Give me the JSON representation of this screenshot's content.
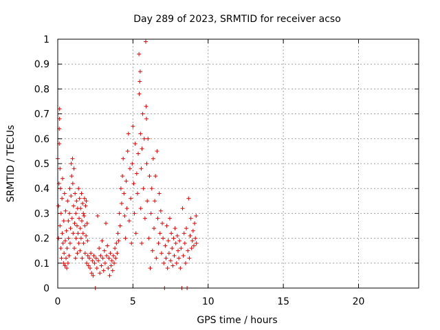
{
  "chart_data": {
    "type": "scatter",
    "title": "Day 289 of 2023, SRMTID for receiver acso",
    "xlabel": "GPS time / hours",
    "ylabel": "SRMTID / TECUs",
    "xlim": [
      0,
      24
    ],
    "ylim": [
      0,
      1
    ],
    "xticks": [
      0,
      5,
      10,
      15,
      20
    ],
    "yticks": [
      0,
      0.1,
      0.2,
      0.3,
      0.4,
      0.5,
      0.6,
      0.7,
      0.8,
      0.9,
      1
    ],
    "xtick_labels": [
      "0",
      "5",
      "10",
      "15",
      "20"
    ],
    "ytick_labels": [
      "0",
      "0.1",
      "0.2",
      "0.3",
      "0.4",
      "0.5",
      "0.6",
      "0.7",
      "0.8",
      "0.9",
      "1"
    ],
    "grid": true,
    "legend": "none",
    "marker": "+",
    "color": "#e00000",
    "points": [
      [
        0.0,
        0.52
      ],
      [
        0.05,
        0.2
      ],
      [
        0.05,
        0.33
      ],
      [
        0.08,
        0.42
      ],
      [
        0.1,
        0.58
      ],
      [
        0.1,
        0.64
      ],
      [
        0.12,
        0.68
      ],
      [
        0.12,
        0.72
      ],
      [
        0.15,
        0.48
      ],
      [
        0.15,
        0.25
      ],
      [
        0.18,
        0.4
      ],
      [
        0.2,
        0.16
      ],
      [
        0.22,
        0.3
      ],
      [
        0.25,
        0.12
      ],
      [
        0.28,
        0.36
      ],
      [
        0.3,
        0.22
      ],
      [
        0.32,
        0.44
      ],
      [
        0.35,
        0.18
      ],
      [
        0.38,
        0.1
      ],
      [
        0.4,
        0.27
      ],
      [
        0.42,
        0.14
      ],
      [
        0.45,
        0.38
      ],
      [
        0.48,
        0.09
      ],
      [
        0.5,
        0.19
      ],
      [
        0.52,
        0.31
      ],
      [
        0.55,
        0.12
      ],
      [
        0.58,
        0.23
      ],
      [
        0.6,
        0.08
      ],
      [
        0.62,
        0.16
      ],
      [
        0.65,
        0.35
      ],
      [
        0.68,
        0.1
      ],
      [
        0.7,
        0.27
      ],
      [
        0.72,
        0.2
      ],
      [
        0.75,
        0.13
      ],
      [
        0.78,
        0.3
      ],
      [
        0.8,
        0.4
      ],
      [
        0.82,
        0.18
      ],
      [
        0.85,
        0.24
      ],
      [
        0.88,
        0.37
      ],
      [
        0.9,
        0.5
      ],
      [
        0.92,
        0.45
      ],
      [
        0.95,
        0.28
      ],
      [
        0.98,
        0.52
      ],
      [
        1.0,
        0.42
      ],
      [
        1.02,
        0.22
      ],
      [
        1.05,
        0.33
      ],
      [
        1.08,
        0.48
      ],
      [
        1.1,
        0.16
      ],
      [
        1.12,
        0.26
      ],
      [
        1.15,
        0.38
      ],
      [
        1.18,
        0.12
      ],
      [
        1.2,
        0.3
      ],
      [
        1.22,
        0.2
      ],
      [
        1.25,
        0.35
      ],
      [
        1.28,
        0.25
      ],
      [
        1.3,
        0.14
      ],
      [
        1.32,
        0.32
      ],
      [
        1.35,
        0.22
      ],
      [
        1.38,
        0.4
      ],
      [
        1.4,
        0.18
      ],
      [
        1.42,
        0.28
      ],
      [
        1.45,
        0.36
      ],
      [
        1.48,
        0.15
      ],
      [
        1.5,
        0.24
      ],
      [
        1.52,
        0.32
      ],
      [
        1.55,
        0.2
      ],
      [
        1.58,
        0.38
      ],
      [
        1.6,
        0.27
      ],
      [
        1.62,
        0.12
      ],
      [
        1.65,
        0.34
      ],
      [
        1.68,
        0.22
      ],
      [
        1.7,
        0.3
      ],
      [
        1.72,
        0.18
      ],
      [
        1.75,
        0.29
      ],
      [
        1.78,
        0.36
      ],
      [
        1.8,
        0.25
      ],
      [
        1.82,
        0.14
      ],
      [
        1.85,
        0.33
      ],
      [
        1.88,
        0.21
      ],
      [
        1.9,
        0.35
      ],
      [
        1.92,
        0.1
      ],
      [
        1.95,
        0.26
      ],
      [
        1.98,
        0.19
      ],
      [
        2.0,
        0.13
      ],
      [
        2.05,
        0.09
      ],
      [
        2.1,
        0.12
      ],
      [
        2.15,
        0.08
      ],
      [
        2.2,
        0.14
      ],
      [
        2.25,
        0.06
      ],
      [
        2.3,
        0.11
      ],
      [
        2.35,
        0.05
      ],
      [
        2.4,
        0.13
      ],
      [
        2.45,
        0.1
      ],
      [
        2.5,
        0.0
      ],
      [
        2.55,
        0.12
      ],
      [
        2.6,
        0.08
      ],
      [
        2.65,
        0.29
      ],
      [
        2.7,
        0.11
      ],
      [
        2.75,
        0.16
      ],
      [
        2.8,
        0.06
      ],
      [
        2.85,
        0.13
      ],
      [
        2.9,
        0.09
      ],
      [
        2.95,
        0.19
      ],
      [
        3.0,
        0.12
      ],
      [
        3.05,
        0.07
      ],
      [
        3.1,
        0.15
      ],
      [
        3.15,
        0.1
      ],
      [
        3.2,
        0.26
      ],
      [
        3.25,
        0.13
      ],
      [
        3.3,
        0.17
      ],
      [
        3.35,
        0.08
      ],
      [
        3.4,
        0.12
      ],
      [
        3.45,
        0.05
      ],
      [
        3.5,
        0.14
      ],
      [
        3.55,
        0.09
      ],
      [
        3.6,
        0.11
      ],
      [
        3.65,
        0.07
      ],
      [
        3.7,
        0.13
      ],
      [
        3.75,
        0.1
      ],
      [
        3.8,
        0.16
      ],
      [
        3.85,
        0.12
      ],
      [
        3.9,
        0.18
      ],
      [
        3.95,
        0.14
      ],
      [
        4.0,
        0.22
      ],
      [
        4.05,
        0.19
      ],
      [
        4.1,
        0.3
      ],
      [
        4.15,
        0.25
      ],
      [
        4.2,
        0.4
      ],
      [
        4.25,
        0.34
      ],
      [
        4.3,
        0.45
      ],
      [
        4.35,
        0.52
      ],
      [
        4.4,
        0.38
      ],
      [
        4.45,
        0.29
      ],
      [
        4.5,
        0.2
      ],
      [
        4.55,
        0.43
      ],
      [
        4.6,
        0.32
      ],
      [
        4.65,
        0.55
      ],
      [
        4.7,
        0.62
      ],
      [
        4.75,
        0.27
      ],
      [
        4.8,
        0.48
      ],
      [
        4.85,
        0.36
      ],
      [
        4.9,
        0.18
      ],
      [
        4.95,
        0.5
      ],
      [
        5.0,
        0.65
      ],
      [
        5.05,
        0.42
      ],
      [
        5.1,
        0.3
      ],
      [
        5.15,
        0.58
      ],
      [
        5.2,
        0.22
      ],
      [
        5.25,
        0.46
      ],
      [
        5.3,
        0.38
      ],
      [
        5.35,
        0.54
      ],
      [
        5.4,
        0.94
      ],
      [
        5.42,
        0.78
      ],
      [
        5.45,
        0.83
      ],
      [
        5.48,
        0.87
      ],
      [
        5.5,
        0.62
      ],
      [
        5.52,
        0.32
      ],
      [
        5.55,
        0.48
      ],
      [
        5.58,
        0.18
      ],
      [
        5.6,
        0.56
      ],
      [
        5.65,
        0.7
      ],
      [
        5.7,
        0.4
      ],
      [
        5.75,
        0.6
      ],
      [
        5.8,
        0.28
      ],
      [
        5.85,
        0.99
      ],
      [
        5.88,
        0.73
      ],
      [
        5.9,
        0.68
      ],
      [
        5.92,
        0.5
      ],
      [
        5.95,
        0.35
      ],
      [
        6.0,
        0.6
      ],
      [
        6.05,
        0.2
      ],
      [
        6.1,
        0.45
      ],
      [
        6.15,
        0.08
      ],
      [
        6.2,
        0.3
      ],
      [
        6.25,
        0.4
      ],
      [
        6.3,
        0.15
      ],
      [
        6.35,
        0.52
      ],
      [
        6.4,
        0.24
      ],
      [
        6.45,
        0.35
      ],
      [
        6.5,
        0.45
      ],
      [
        6.55,
        0.12
      ],
      [
        6.6,
        0.55
      ],
      [
        6.65,
        0.28
      ],
      [
        6.7,
        0.18
      ],
      [
        6.75,
        0.38
      ],
      [
        6.8,
        0.22
      ],
      [
        6.85,
        0.31
      ],
      [
        6.9,
        0.14
      ],
      [
        6.95,
        0.26
      ],
      [
        7.0,
        0.2
      ],
      [
        7.05,
        0.1
      ],
      [
        7.1,
        0.0
      ],
      [
        7.15,
        0.17
      ],
      [
        7.2,
        0.12
      ],
      [
        7.25,
        0.25
      ],
      [
        7.3,
        0.08
      ],
      [
        7.35,
        0.19
      ],
      [
        7.4,
        0.14
      ],
      [
        7.45,
        0.28
      ],
      [
        7.5,
        0.11
      ],
      [
        7.55,
        0.22
      ],
      [
        7.6,
        0.16
      ],
      [
        7.65,
        0.09
      ],
      [
        7.7,
        0.2
      ],
      [
        7.75,
        0.13
      ],
      [
        7.8,
        0.24
      ],
      [
        7.85,
        0.18
      ],
      [
        7.9,
        0.1
      ],
      [
        7.95,
        0.21
      ],
      [
        8.0,
        0.15
      ],
      [
        8.05,
        0.12
      ],
      [
        8.1,
        0.19
      ],
      [
        8.15,
        0.08
      ],
      [
        8.2,
        0.16
      ],
      [
        8.25,
        0.0
      ],
      [
        8.3,
        0.32
      ],
      [
        8.35,
        0.13
      ],
      [
        8.4,
        0.22
      ],
      [
        8.45,
        0.18
      ],
      [
        8.5,
        0.1
      ],
      [
        8.55,
        0.24
      ],
      [
        8.6,
        0.0
      ],
      [
        8.65,
        0.15
      ],
      [
        8.7,
        0.36
      ],
      [
        8.75,
        0.12
      ],
      [
        8.8,
        0.21
      ],
      [
        8.85,
        0.28
      ],
      [
        8.9,
        0.16
      ],
      [
        8.95,
        0.19
      ],
      [
        9.0,
        0.23
      ],
      [
        9.05,
        0.17
      ],
      [
        9.1,
        0.26
      ],
      [
        9.15,
        0.2
      ],
      [
        9.2,
        0.29
      ],
      [
        9.22,
        0.18
      ]
    ]
  }
}
